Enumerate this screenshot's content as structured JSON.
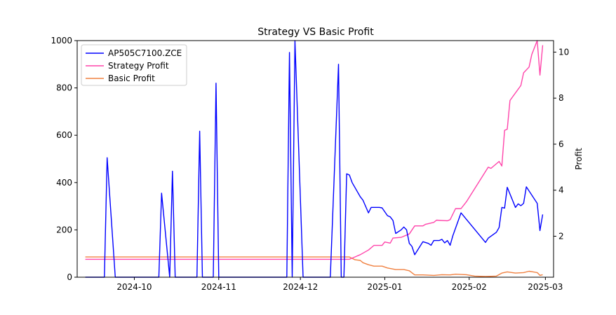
{
  "chart_data": {
    "type": "line",
    "title": "Strategy VS Basic Profit",
    "xlabel": "",
    "ylabel_left": "",
    "ylabel_right": "Profit",
    "x_ticks": [
      "2024-10",
      "2024-11",
      "2024-12",
      "2025-01",
      "2025-02",
      "2025-03"
    ],
    "y_left_ticks": [
      0,
      200,
      400,
      600,
      800,
      1000
    ],
    "y_right_ticks": [
      2,
      4,
      6,
      8,
      10
    ],
    "ylim_left": [
      0,
      1000
    ],
    "ylim_right": [
      0.22,
      10.5
    ],
    "xlim": [
      "2024-09-10",
      "2025-03-04"
    ],
    "grid": false,
    "legend_position": "top-left",
    "series": [
      {
        "name": "AP505C7100.ZCE",
        "axis": "left",
        "color": "#0000ff",
        "points": [
          [
            "2024-09-13",
            0
          ],
          [
            "2024-09-20",
            0
          ],
          [
            "2024-09-21",
            505
          ],
          [
            "2024-09-24",
            0
          ],
          [
            "2024-10-01",
            0
          ],
          [
            "2024-10-10",
            0
          ],
          [
            "2024-10-11",
            355
          ],
          [
            "2024-10-14",
            0
          ],
          [
            "2024-10-15",
            448
          ],
          [
            "2024-10-16",
            0
          ],
          [
            "2024-10-24",
            0
          ],
          [
            "2024-10-25",
            617
          ],
          [
            "2024-10-26",
            0
          ],
          [
            "2024-10-30",
            0
          ],
          [
            "2024-10-31",
            820
          ],
          [
            "2024-11-01",
            0
          ],
          [
            "2024-11-15",
            0
          ],
          [
            "2024-11-26",
            0
          ],
          [
            "2024-11-27",
            950
          ],
          [
            "2024-11-28",
            0
          ],
          [
            "2024-11-29",
            1000
          ],
          [
            "2024-12-02",
            0
          ],
          [
            "2024-12-12",
            0
          ],
          [
            "2024-12-15",
            900
          ],
          [
            "2024-12-16",
            0
          ],
          [
            "2024-12-17",
            0
          ],
          [
            "2024-12-18",
            437
          ],
          [
            "2024-12-19",
            432
          ],
          [
            "2024-12-20",
            400
          ],
          [
            "2024-12-23",
            340
          ],
          [
            "2024-12-24",
            325
          ],
          [
            "2024-12-26",
            272
          ],
          [
            "2024-12-27",
            295
          ],
          [
            "2024-12-30",
            295
          ],
          [
            "2024-12-31",
            293
          ],
          [
            "2025-01-02",
            260
          ],
          [
            "2025-01-03",
            255
          ],
          [
            "2025-01-04",
            240
          ],
          [
            "2025-01-05",
            185
          ],
          [
            "2025-01-07",
            200
          ],
          [
            "2025-01-08",
            212
          ],
          [
            "2025-01-09",
            200
          ],
          [
            "2025-01-10",
            143
          ],
          [
            "2025-01-11",
            130
          ],
          [
            "2025-01-12",
            95
          ],
          [
            "2025-01-15",
            150
          ],
          [
            "2025-01-17",
            143
          ],
          [
            "2025-01-18",
            135
          ],
          [
            "2025-01-19",
            155
          ],
          [
            "2025-01-21",
            155
          ],
          [
            "2025-01-22",
            160
          ],
          [
            "2025-01-23",
            145
          ],
          [
            "2025-01-24",
            155
          ],
          [
            "2025-01-25",
            135
          ],
          [
            "2025-01-26",
            175
          ],
          [
            "2025-01-29",
            272
          ],
          [
            "2025-02-07",
            147
          ],
          [
            "2025-02-08",
            165
          ],
          [
            "2025-02-11",
            190
          ],
          [
            "2025-02-12",
            210
          ],
          [
            "2025-02-13",
            295
          ],
          [
            "2025-02-14",
            292
          ],
          [
            "2025-02-15",
            380
          ],
          [
            "2025-02-18",
            295
          ],
          [
            "2025-02-19",
            310
          ],
          [
            "2025-02-20",
            302
          ],
          [
            "2025-02-21",
            312
          ],
          [
            "2025-02-22",
            382
          ],
          [
            "2025-02-26",
            312
          ],
          [
            "2025-02-27",
            197
          ],
          [
            "2025-02-28",
            265
          ]
        ]
      },
      {
        "name": "Strategy Profit",
        "axis": "right",
        "color": "#ff44aa",
        "points": [
          [
            "2024-09-13",
            1.0
          ],
          [
            "2024-12-19",
            1.0
          ],
          [
            "2024-12-21",
            1.1
          ],
          [
            "2024-12-23",
            1.2
          ],
          [
            "2024-12-26",
            1.4
          ],
          [
            "2024-12-28",
            1.6
          ],
          [
            "2024-12-31",
            1.6
          ],
          [
            "2025-01-01",
            1.75
          ],
          [
            "2025-01-03",
            1.7
          ],
          [
            "2025-01-04",
            1.92
          ],
          [
            "2025-01-07",
            1.95
          ],
          [
            "2025-01-10",
            2.1
          ],
          [
            "2025-01-12",
            2.45
          ],
          [
            "2025-01-15",
            2.45
          ],
          [
            "2025-01-16",
            2.52
          ],
          [
            "2025-01-19",
            2.6
          ],
          [
            "2025-01-20",
            2.7
          ],
          [
            "2025-01-24",
            2.67
          ],
          [
            "2025-01-25",
            2.72
          ],
          [
            "2025-01-27",
            3.2
          ],
          [
            "2025-01-29",
            3.2
          ],
          [
            "2025-01-31",
            3.5
          ],
          [
            "2025-02-08",
            5.0
          ],
          [
            "2025-02-09",
            4.95
          ],
          [
            "2025-02-12",
            5.25
          ],
          [
            "2025-02-13",
            5.05
          ],
          [
            "2025-02-14",
            6.6
          ],
          [
            "2025-02-15",
            6.65
          ],
          [
            "2025-02-16",
            7.9
          ],
          [
            "2025-02-20",
            8.55
          ],
          [
            "2025-02-21",
            9.1
          ],
          [
            "2025-02-23",
            9.35
          ],
          [
            "2025-02-24",
            9.9
          ],
          [
            "2025-02-26",
            10.5
          ],
          [
            "2025-02-27",
            9.0
          ],
          [
            "2025-02-28",
            10.3
          ]
        ]
      },
      {
        "name": "Basic Profit",
        "axis": "right",
        "color": "#f08040",
        "points": [
          [
            "2024-09-13",
            1.1
          ],
          [
            "2024-12-19",
            1.1
          ],
          [
            "2024-12-21",
            0.98
          ],
          [
            "2024-12-23",
            0.95
          ],
          [
            "2024-12-24",
            0.85
          ],
          [
            "2024-12-26",
            0.76
          ],
          [
            "2024-12-28",
            0.7
          ],
          [
            "2024-12-31",
            0.7
          ],
          [
            "2025-01-02",
            0.62
          ],
          [
            "2025-01-05",
            0.55
          ],
          [
            "2025-01-08",
            0.55
          ],
          [
            "2025-01-10",
            0.5
          ],
          [
            "2025-01-12",
            0.32
          ],
          [
            "2025-01-15",
            0.32
          ],
          [
            "2025-01-19",
            0.3
          ],
          [
            "2025-01-22",
            0.33
          ],
          [
            "2025-01-25",
            0.32
          ],
          [
            "2025-01-27",
            0.35
          ],
          [
            "2025-01-31",
            0.33
          ],
          [
            "2025-02-03",
            0.27
          ],
          [
            "2025-02-07",
            0.25
          ],
          [
            "2025-02-11",
            0.27
          ],
          [
            "2025-02-13",
            0.4
          ],
          [
            "2025-02-15",
            0.45
          ],
          [
            "2025-02-18",
            0.4
          ],
          [
            "2025-02-21",
            0.42
          ],
          [
            "2025-02-23",
            0.48
          ],
          [
            "2025-02-26",
            0.42
          ],
          [
            "2025-02-27",
            0.3
          ],
          [
            "2025-02-28",
            0.33
          ]
        ]
      }
    ]
  }
}
